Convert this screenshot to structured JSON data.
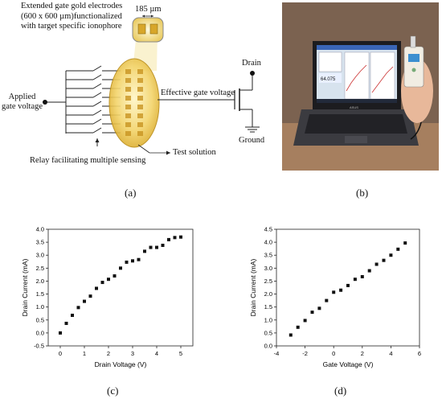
{
  "panel_a": {
    "label_electrodes": [
      "Extended gate gold electrodes",
      "(600 x 600 µm)functionalized",
      "with target specific ionophore"
    ],
    "label_pitch": "185 µm",
    "label_applied": [
      "Applied",
      "gate voltage"
    ],
    "label_effective": "Effective gate voltage",
    "label_drain": "Drain",
    "label_ground": "Ground",
    "label_relay": "Relay facilitating multiple sensing",
    "label_solution": "Test solution",
    "caption": "(a)"
  },
  "panel_b": {
    "caption": "(b)",
    "screen_value": "64.075",
    "keyboard_brand": "ASUS"
  },
  "panel_c": {
    "caption": "(c)"
  },
  "panel_d": {
    "caption": "(d)"
  },
  "chart_data": [
    {
      "type": "scatter",
      "xlabel": "Drain Voltage (V)",
      "ylabel": "Drain Current (mA)",
      "xlim": [
        -0.5,
        5.5
      ],
      "ylim": [
        -0.5,
        4.0
      ],
      "xticks": [
        "0",
        "1",
        "2",
        "3",
        "4",
        "5"
      ],
      "yticks": [
        "-0.5",
        "0.0",
        "0.5",
        "1.0",
        "1.5",
        "2.0",
        "2.5",
        "3.0",
        "3.5",
        "4.0"
      ],
      "x": [
        0.0,
        0.25,
        0.5,
        0.75,
        1.0,
        1.25,
        1.5,
        1.75,
        2.0,
        2.25,
        2.5,
        2.75,
        3.0,
        3.25,
        3.5,
        3.75,
        4.0,
        4.25,
        4.5,
        4.75,
        5.0
      ],
      "y": [
        0.0,
        0.37,
        0.68,
        0.98,
        1.22,
        1.42,
        1.72,
        1.95,
        2.07,
        2.2,
        2.5,
        2.73,
        2.78,
        2.83,
        3.15,
        3.3,
        3.3,
        3.38,
        3.6,
        3.68,
        3.7
      ]
    },
    {
      "type": "scatter",
      "xlabel": "Gate Voltage (V)",
      "ylabel": "Drain Current (mA)",
      "xlim": [
        -4,
        6
      ],
      "ylim": [
        0,
        4.5
      ],
      "xticks": [
        "-4",
        "-2",
        "0",
        "2",
        "4",
        "6"
      ],
      "yticks": [
        "0.0",
        "0.5",
        "1.0",
        "1.5",
        "2.0",
        "2.5",
        "3.0",
        "3.5",
        "4.0",
        "4.5"
      ],
      "x": [
        -3.0,
        -2.5,
        -2.0,
        -1.5,
        -1.0,
        -0.5,
        0.0,
        0.5,
        1.0,
        1.5,
        2.0,
        2.5,
        3.0,
        3.5,
        4.0,
        4.5,
        5.0
      ],
      "y": [
        0.42,
        0.72,
        0.98,
        1.3,
        1.45,
        1.75,
        2.07,
        2.15,
        2.33,
        2.57,
        2.67,
        2.9,
        3.15,
        3.3,
        3.5,
        3.73,
        3.97
      ]
    }
  ]
}
